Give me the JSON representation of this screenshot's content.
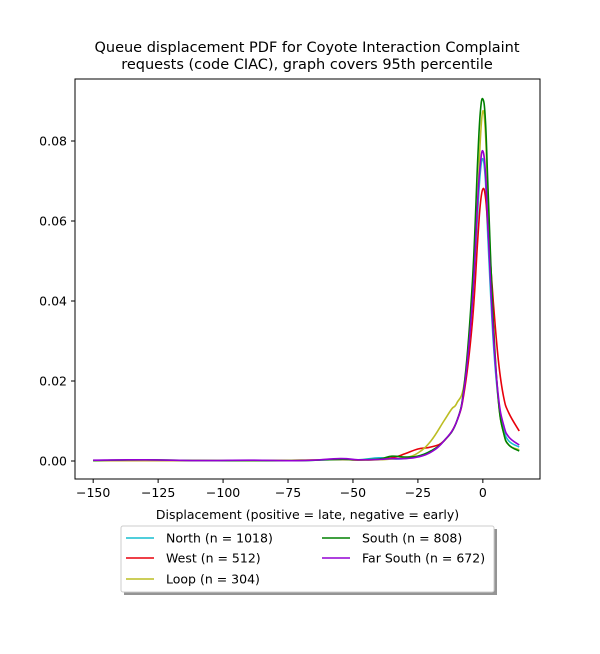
{
  "chart_data": {
    "type": "line",
    "title_lines": [
      "Queue displacement PDF for Coyote Interaction Complaint",
      "requests (code CIAC), graph covers 95th percentile"
    ],
    "xlabel": "Displacement (positive = late, negative = early)",
    "ylabel": "",
    "xlim": [
      -157,
      22
    ],
    "ylim": [
      -0.0045,
      0.0955
    ],
    "x_ticks": [
      -150,
      -125,
      -100,
      -75,
      -50,
      -25,
      0
    ],
    "x_tick_labels": [
      "−150",
      "−125",
      "−100",
      "−75",
      "−50",
      "−25",
      "0"
    ],
    "y_ticks": [
      0.0,
      0.02,
      0.04,
      0.06,
      0.08
    ],
    "y_tick_labels": [
      "0.00",
      "0.02",
      "0.04",
      "0.06",
      "0.08"
    ],
    "grid": false,
    "legend_position": "below-center",
    "series": [
      {
        "name": "North (n = 1018)",
        "color": "#17becf",
        "x": [
          -150,
          -130,
          -110,
          -90,
          -70,
          -55,
          -48,
          -40,
          -35,
          -30,
          -25,
          -20,
          -15,
          -10,
          -7,
          -4,
          -2,
          -1,
          0,
          1,
          2,
          4,
          6,
          8,
          10,
          14
        ],
        "y": [
          0.0001,
          0.0002,
          0.0001,
          0.0001,
          0.0001,
          0.0004,
          0.0003,
          0.0008,
          0.0005,
          0.0006,
          0.0012,
          0.0025,
          0.005,
          0.01,
          0.019,
          0.038,
          0.062,
          0.072,
          0.0755,
          0.07,
          0.055,
          0.03,
          0.015,
          0.008,
          0.005,
          0.0035
        ]
      },
      {
        "name": "West (n = 512)",
        "color": "#e8000b",
        "x": [
          -150,
          -130,
          -110,
          -90,
          -70,
          -55,
          -45,
          -35,
          -30,
          -25,
          -20,
          -15,
          -10,
          -7,
          -4,
          -2,
          -1,
          0,
          1,
          2,
          4,
          6,
          8,
          10,
          14
        ],
        "y": [
          0.0001,
          0.0001,
          0.0001,
          0.0001,
          0.0002,
          0.0004,
          0.0002,
          0.0008,
          0.0018,
          0.003,
          0.0035,
          0.005,
          0.01,
          0.018,
          0.035,
          0.055,
          0.064,
          0.068,
          0.066,
          0.058,
          0.04,
          0.025,
          0.016,
          0.012,
          0.0075
        ]
      },
      {
        "name": "Loop (n = 304)",
        "color": "#bcbd22",
        "x": [
          -150,
          -130,
          -110,
          -90,
          -70,
          -55,
          -45,
          -35,
          -30,
          -25,
          -20,
          -15,
          -12,
          -10,
          -7,
          -4,
          -2,
          -1,
          0,
          1,
          2,
          4,
          6,
          8,
          10,
          14
        ],
        "y": [
          0.0001,
          0.0001,
          0.0001,
          0.0001,
          0.0002,
          0.0004,
          0.0002,
          0.0005,
          0.0008,
          0.002,
          0.005,
          0.01,
          0.013,
          0.0145,
          0.02,
          0.04,
          0.065,
          0.08,
          0.0875,
          0.082,
          0.065,
          0.035,
          0.015,
          0.007,
          0.004,
          0.0028
        ]
      },
      {
        "name": "South (n = 808)",
        "color": "#008000",
        "x": [
          -150,
          -130,
          -110,
          -90,
          -70,
          -55,
          -48,
          -40,
          -35,
          -30,
          -25,
          -20,
          -15,
          -10,
          -7,
          -4,
          -2,
          -1,
          0,
          1,
          2,
          4,
          6,
          8,
          10,
          14
        ],
        "y": [
          0.0001,
          0.0003,
          0.0001,
          0.0001,
          0.0001,
          0.0004,
          0.0003,
          0.0005,
          0.0012,
          0.001,
          0.0012,
          0.0025,
          0.005,
          0.01,
          0.02,
          0.045,
          0.075,
          0.087,
          0.0905,
          0.085,
          0.068,
          0.035,
          0.015,
          0.007,
          0.004,
          0.0025
        ]
      },
      {
        "name": "Far South (n = 672)",
        "color": "#9400d3",
        "x": [
          -150,
          -130,
          -110,
          -90,
          -70,
          -55,
          -48,
          -40,
          -35,
          -30,
          -25,
          -20,
          -15,
          -10,
          -7,
          -4,
          -2,
          -1,
          0,
          1,
          2,
          4,
          6,
          8,
          10,
          14
        ],
        "y": [
          0.0002,
          0.0003,
          0.0001,
          0.0002,
          0.0001,
          0.0006,
          0.0003,
          0.0004,
          0.0006,
          0.0006,
          0.001,
          0.0022,
          0.005,
          0.01,
          0.019,
          0.04,
          0.065,
          0.074,
          0.0775,
          0.072,
          0.058,
          0.032,
          0.016,
          0.009,
          0.006,
          0.004
        ]
      }
    ]
  }
}
